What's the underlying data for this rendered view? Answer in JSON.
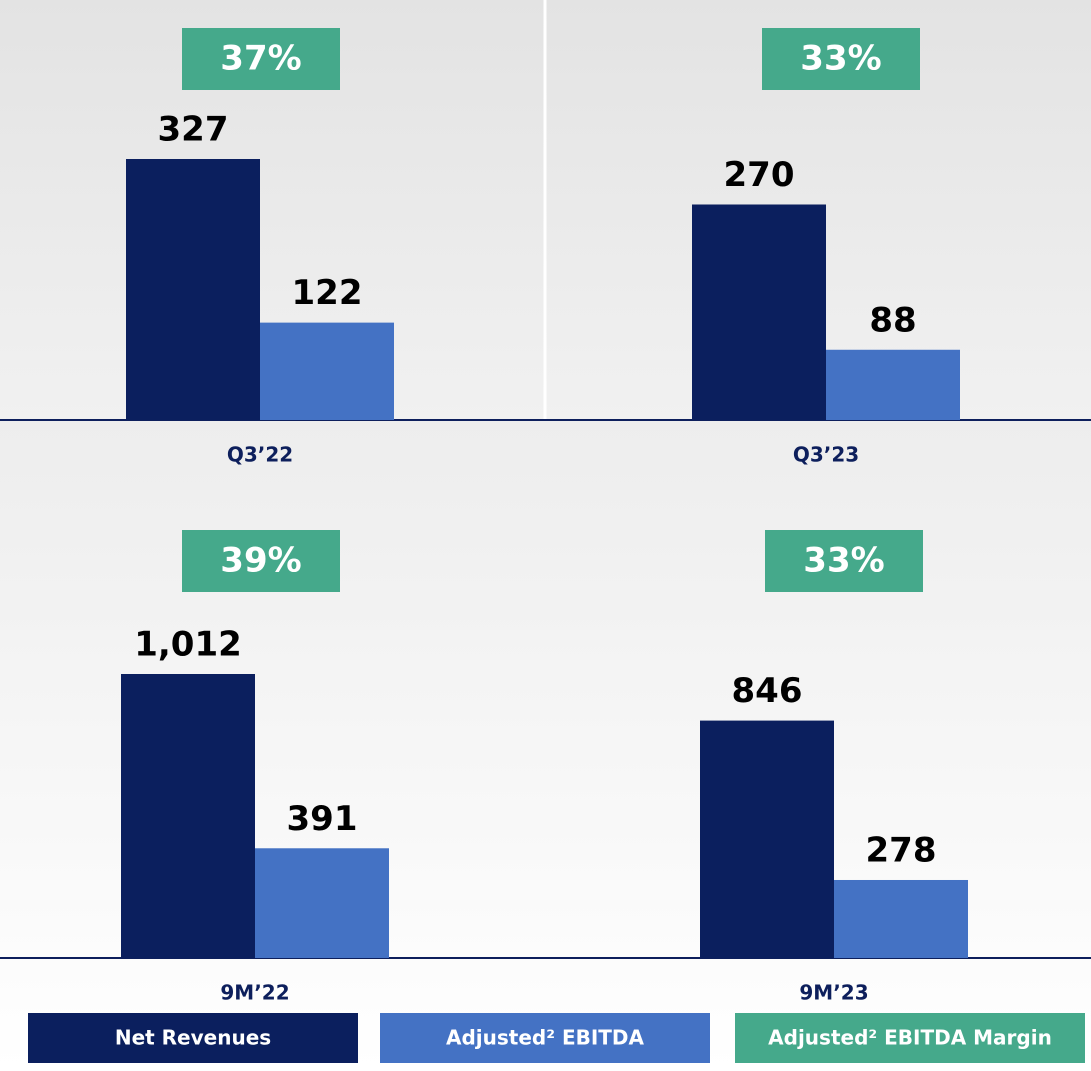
{
  "chart_data": {
    "type": "bar",
    "categories": [
      "Q3’22",
      "Q3’23",
      "9M’22",
      "9M’23"
    ],
    "series": [
      {
        "name": "Net Revenues",
        "color": "#0b1f5e",
        "values": [
          327,
          270,
          1012,
          846
        ],
        "value_labels": [
          "327",
          "270",
          "1,012",
          "846"
        ]
      },
      {
        "name": "Adjusted² EBITDA",
        "color": "#4472c4",
        "values": [
          122,
          88,
          391,
          278
        ]
      },
      {
        "name": "Adjusted² EBITDA Margin",
        "color": "#45a98b",
        "values": [
          37,
          33,
          39,
          33
        ],
        "value_labels": [
          "37%",
          "33%",
          "39%",
          "33%"
        ]
      }
    ]
  }
}
